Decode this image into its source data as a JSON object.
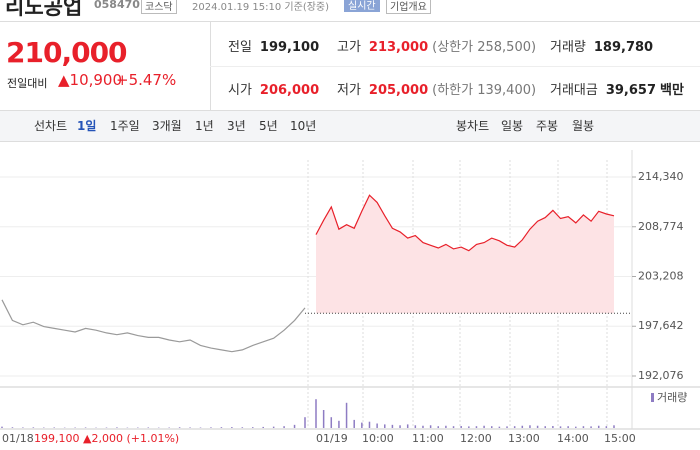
{
  "header": {
    "name": "리노공업",
    "code": "058470",
    "market": "코스닥",
    "timestamp": "2024.01.19 15:10 기준(장중)",
    "realtime": "실시간",
    "company_info": "기업개요"
  },
  "quote": {
    "price": "210,000",
    "change_label": "전일대비",
    "change": "▲10,900",
    "change_rate": "+5.47%"
  },
  "stats": [
    {
      "label": "전일",
      "value": "199,100"
    },
    {
      "label": "고가",
      "value": "213,000",
      "note": "(상한가 258,500)"
    },
    {
      "label": "거래량",
      "value": "189,780"
    },
    {
      "label": "시가",
      "value": "206,000"
    },
    {
      "label": "저가",
      "value": "205,000",
      "note": "(하한가 139,400)"
    },
    {
      "label": "거래대금",
      "value": "39,657",
      "unit": "백만"
    }
  ],
  "tabs": {
    "line_label": "선차트",
    "line_periods": [
      "1일",
      "1주일",
      "3개월",
      "1년",
      "3년",
      "5년",
      "10년"
    ],
    "candle_label": "봉차트",
    "candle_periods": [
      "일봉",
      "주봉",
      "월봉"
    ]
  },
  "chart_data": {
    "type": "line",
    "x_labels": [
      "01/18",
      "01/19",
      "10:00",
      "11:00",
      "12:00",
      "13:00",
      "14:00",
      "15:00"
    ],
    "ylim": [
      191069,
      216242
    ],
    "yticks": [
      {
        "value": 214340,
        "label": "214,340"
      },
      {
        "value": 208774,
        "label": "208,774"
      },
      {
        "value": 203208,
        "label": "203,208"
      },
      {
        "value": 197642,
        "label": "197,642"
      },
      {
        "value": 192076,
        "label": "192,076"
      }
    ],
    "grid": true,
    "reference_line": 199100,
    "series": [
      {
        "color": "#9a9a9a",
        "values": [
          200600,
          198300,
          197800,
          198100,
          197600,
          197400,
          197200,
          197000,
          197400,
          197200,
          196900,
          196700,
          196900,
          196600,
          196400,
          196400,
          196100,
          195900,
          196100,
          195500,
          195200,
          195000,
          194800,
          195000,
          195500,
          195900,
          196300,
          197200,
          198300,
          199700
        ]
      },
      {
        "color": "#e8202a",
        "fill": "#fde3e5",
        "values": [
          207900,
          209500,
          211000,
          208500,
          209000,
          208600,
          210500,
          212300,
          211500,
          210000,
          208600,
          208200,
          207500,
          207800,
          207000,
          206700,
          206400,
          206800,
          206300,
          206500,
          206100,
          206800,
          207000,
          207500,
          207200,
          206700,
          206500,
          207300,
          208500,
          209400,
          209800,
          210600,
          209700,
          209900,
          209200,
          210100,
          209400,
          210500,
          210200,
          210000
        ]
      }
    ],
    "volume": {
      "name": "거래량",
      "color": "#8e7cc3",
      "ylim": [
        0,
        40000
      ],
      "series": [
        {
          "values": [
            1500,
            800,
            600,
            700,
            500,
            600,
            400,
            500,
            600,
            400,
            500,
            700,
            400,
            500,
            600,
            400,
            500,
            800,
            600,
            500,
            700,
            900,
            1000,
            800,
            900,
            1200,
            1500,
            2000,
            3500,
            12000
          ]
        },
        {
          "values": [
            32000,
            20000,
            12000,
            8000,
            28000,
            9000,
            6000,
            7000,
            5000,
            4000,
            3500,
            3000,
            4000,
            3000,
            2500,
            3000,
            2000,
            2500,
            2000,
            2200,
            1800,
            2000,
            2500,
            2000,
            1500,
            1800,
            2000,
            2500,
            3000,
            2500,
            2000,
            2200,
            1800,
            2000,
            1500,
            2000,
            1800,
            2500,
            2000,
            3000
          ]
        }
      ]
    }
  },
  "footer": {
    "close": "199,100",
    "change": "▲2,000",
    "rate": "(+1.01%)"
  }
}
